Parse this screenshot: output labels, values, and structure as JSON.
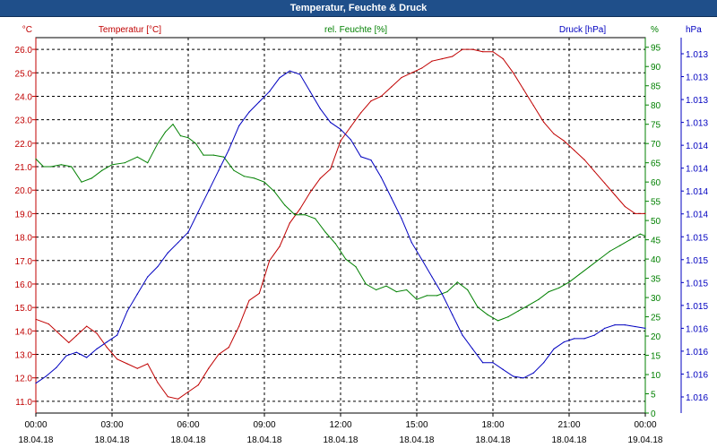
{
  "window": {
    "title": "Temperatur, Feuchte & Druck"
  },
  "colors": {
    "temp": "#c00000",
    "hum": "#008000",
    "press": "#0000c0",
    "axis": "#000000",
    "grid": "#000000",
    "title_bar": "#1f4f8a"
  },
  "chart_data": {
    "type": "line",
    "title": "Temperatur, Feuchte & Druck",
    "grid": true,
    "x": {
      "range": [
        0,
        24
      ],
      "ticks": [
        {
          "v": 0,
          "time": "00:00",
          "date": "18.04.18"
        },
        {
          "v": 3,
          "time": "03:00",
          "date": "18.04.18"
        },
        {
          "v": 6,
          "time": "06:00",
          "date": "18.04.18"
        },
        {
          "v": 9,
          "time": "09:00",
          "date": "18.04.18"
        },
        {
          "v": 12,
          "time": "12:00",
          "date": "18.04.18"
        },
        {
          "v": 15,
          "time": "15:00",
          "date": "18.04.18"
        },
        {
          "v": 18,
          "time": "18:00",
          "date": "18.04.18"
        },
        {
          "v": 21,
          "time": "21:00",
          "date": "18.04.18"
        },
        {
          "v": 24,
          "time": "00:00",
          "date": "19.04.18"
        }
      ]
    },
    "axes": {
      "temp": {
        "unit": "°C",
        "label": "Temperatur [°C]",
        "range": [
          10.5,
          26.5
        ],
        "ticks": [
          "11.0",
          "12.0",
          "13.0",
          "14.0",
          "15.0",
          "16.0",
          "17.0",
          "18.0",
          "19.0",
          "20.0",
          "21.0",
          "22.0",
          "23.0",
          "24.0",
          "25.0",
          "26.0"
        ]
      },
      "hum": {
        "unit": "%",
        "label": "rel. Feuchte [%]",
        "range": [
          0,
          97.5
        ],
        "ticks": [
          "0",
          "5",
          "10",
          "15",
          "20",
          "25",
          "30",
          "35",
          "40",
          "45",
          "50",
          "55",
          "60",
          "65",
          "70",
          "75",
          "80",
          "85",
          "90",
          "95"
        ]
      },
      "press": {
        "unit": "hPa",
        "label": "Druck [hPa]",
        "ticks": [
          "1.013",
          "1.013",
          "1.013",
          "1.013",
          "1.014",
          "1.014",
          "1.014",
          "1.014",
          "1.015",
          "1.015",
          "1.015",
          "1.015",
          "1.016",
          "1.016",
          "1.016",
          "1.016"
        ]
      }
    },
    "series": [
      {
        "name": "Temperatur [°C]",
        "key": "temp",
        "axis": "temp",
        "points": [
          [
            0,
            14.5
          ],
          [
            0.5,
            14.3
          ],
          [
            1,
            13.8
          ],
          [
            1.3,
            13.5
          ],
          [
            1.6,
            13.8
          ],
          [
            2,
            14.2
          ],
          [
            2.4,
            13.9
          ],
          [
            2.8,
            13.3
          ],
          [
            3.2,
            12.8
          ],
          [
            3.6,
            12.6
          ],
          [
            4,
            12.4
          ],
          [
            4.4,
            12.6
          ],
          [
            4.8,
            11.8
          ],
          [
            5.2,
            11.2
          ],
          [
            5.6,
            11.1
          ],
          [
            6,
            11.4
          ],
          [
            6.4,
            11.7
          ],
          [
            6.8,
            12.4
          ],
          [
            7.2,
            13.0
          ],
          [
            7.6,
            13.3
          ],
          [
            8,
            14.2
          ],
          [
            8.4,
            15.3
          ],
          [
            8.8,
            15.6
          ],
          [
            9.2,
            17.0
          ],
          [
            9.6,
            17.6
          ],
          [
            10,
            18.6
          ],
          [
            10.4,
            19.2
          ],
          [
            10.8,
            19.9
          ],
          [
            11.2,
            20.5
          ],
          [
            11.6,
            20.9
          ],
          [
            12,
            22.1
          ],
          [
            12.4,
            22.7
          ],
          [
            12.8,
            23.3
          ],
          [
            13.2,
            23.8
          ],
          [
            13.6,
            24.0
          ],
          [
            14,
            24.4
          ],
          [
            14.4,
            24.8
          ],
          [
            14.8,
            25.0
          ],
          [
            15.2,
            25.2
          ],
          [
            15.6,
            25.5
          ],
          [
            16,
            25.6
          ],
          [
            16.4,
            25.7
          ],
          [
            16.8,
            26.0
          ],
          [
            17.2,
            26.0
          ],
          [
            17.6,
            25.9
          ],
          [
            18,
            25.9
          ],
          [
            18.4,
            25.6
          ],
          [
            18.8,
            25.0
          ],
          [
            19.2,
            24.3
          ],
          [
            19.6,
            23.6
          ],
          [
            20,
            22.9
          ],
          [
            20.4,
            22.4
          ],
          [
            20.8,
            22.1
          ],
          [
            21.2,
            21.7
          ],
          [
            21.6,
            21.3
          ],
          [
            22,
            20.8
          ],
          [
            22.4,
            20.3
          ],
          [
            22.8,
            19.8
          ],
          [
            23.2,
            19.3
          ],
          [
            23.6,
            19.0
          ],
          [
            24,
            19.0
          ]
        ]
      },
      {
        "name": "rel. Feuchte [%]",
        "key": "hum",
        "axis": "hum",
        "points": [
          [
            0,
            66
          ],
          [
            0.3,
            64
          ],
          [
            0.6,
            64
          ],
          [
            1,
            64.5
          ],
          [
            1.4,
            64
          ],
          [
            1.8,
            60
          ],
          [
            2.2,
            61
          ],
          [
            2.6,
            63
          ],
          [
            3,
            64.5
          ],
          [
            3.5,
            65
          ],
          [
            4,
            66.5
          ],
          [
            4.4,
            65
          ],
          [
            4.8,
            70
          ],
          [
            5.1,
            73
          ],
          [
            5.4,
            75
          ],
          [
            5.7,
            72
          ],
          [
            6,
            71.5
          ],
          [
            6.3,
            70
          ],
          [
            6.6,
            67
          ],
          [
            7,
            67
          ],
          [
            7.4,
            66.5
          ],
          [
            7.8,
            63
          ],
          [
            8.2,
            61.5
          ],
          [
            8.6,
            61
          ],
          [
            9,
            60
          ],
          [
            9.4,
            57.5
          ],
          [
            9.8,
            54
          ],
          [
            10.2,
            51.5
          ],
          [
            10.6,
            51.5
          ],
          [
            11,
            50.5
          ],
          [
            11.4,
            47
          ],
          [
            11.8,
            44
          ],
          [
            12.2,
            40
          ],
          [
            12.6,
            38
          ],
          [
            13,
            33.5
          ],
          [
            13.4,
            32
          ],
          [
            13.8,
            33
          ],
          [
            14.2,
            31.5
          ],
          [
            14.6,
            32
          ],
          [
            15,
            29.5
          ],
          [
            15.4,
            30.5
          ],
          [
            15.8,
            30.5
          ],
          [
            16.2,
            31.5
          ],
          [
            16.6,
            34
          ],
          [
            17,
            32
          ],
          [
            17.4,
            27.5
          ],
          [
            17.8,
            25.5
          ],
          [
            18.2,
            24
          ],
          [
            18.6,
            25
          ],
          [
            19,
            26.5
          ],
          [
            19.4,
            28
          ],
          [
            19.8,
            29.5
          ],
          [
            20.2,
            31.5
          ],
          [
            20.6,
            32.5
          ],
          [
            21,
            34
          ],
          [
            21.4,
            36
          ],
          [
            21.8,
            38
          ],
          [
            22.2,
            40
          ],
          [
            22.6,
            42
          ],
          [
            23,
            43.5
          ],
          [
            23.4,
            45
          ],
          [
            23.8,
            46.5
          ],
          [
            24,
            46
          ]
        ]
      },
      {
        "name": "Druck [hPa]",
        "key": "press",
        "axis": "press",
        "points": [
          [
            0,
            4
          ],
          [
            0.4,
            6
          ],
          [
            0.8,
            8.5
          ],
          [
            1.2,
            12
          ],
          [
            1.6,
            13
          ],
          [
            2,
            11.5
          ],
          [
            2.4,
            14
          ],
          [
            2.8,
            16
          ],
          [
            3.2,
            18
          ],
          [
            3.6,
            25
          ],
          [
            4,
            30
          ],
          [
            4.4,
            35
          ],
          [
            4.8,
            38
          ],
          [
            5.2,
            42
          ],
          [
            5.6,
            45
          ],
          [
            6,
            48
          ],
          [
            6.4,
            54
          ],
          [
            6.8,
            60
          ],
          [
            7.2,
            66
          ],
          [
            7.6,
            72
          ],
          [
            8,
            79
          ],
          [
            8.4,
            83
          ],
          [
            8.8,
            86
          ],
          [
            9.2,
            89
          ],
          [
            9.6,
            93
          ],
          [
            10,
            95
          ],
          [
            10.4,
            94
          ],
          [
            10.8,
            89
          ],
          [
            11.2,
            84
          ],
          [
            11.6,
            80
          ],
          [
            12,
            78
          ],
          [
            12.4,
            75
          ],
          [
            12.8,
            70
          ],
          [
            13.2,
            69
          ],
          [
            13.6,
            64
          ],
          [
            14,
            58
          ],
          [
            14.4,
            52
          ],
          [
            14.8,
            45
          ],
          [
            15.2,
            40
          ],
          [
            15.6,
            35
          ],
          [
            16,
            30
          ],
          [
            16.4,
            24
          ],
          [
            16.8,
            18
          ],
          [
            17.2,
            14
          ],
          [
            17.6,
            10
          ],
          [
            18,
            10
          ],
          [
            18.4,
            8
          ],
          [
            18.8,
            6
          ],
          [
            19.2,
            5.5
          ],
          [
            19.6,
            7
          ],
          [
            20,
            10
          ],
          [
            20.4,
            14
          ],
          [
            20.8,
            16
          ],
          [
            21.2,
            17
          ],
          [
            21.6,
            17
          ],
          [
            22,
            18
          ],
          [
            22.4,
            20
          ],
          [
            22.8,
            21
          ],
          [
            23.2,
            21
          ],
          [
            23.6,
            20.5
          ],
          [
            24,
            20
          ]
        ]
      }
    ]
  }
}
